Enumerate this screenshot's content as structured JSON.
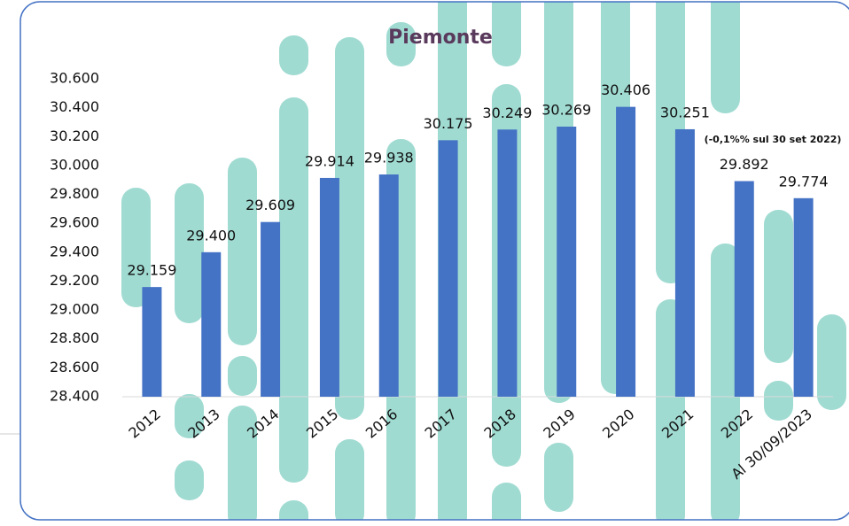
{
  "chart_data": {
    "type": "bar",
    "title": "Piemonte",
    "annotation": "(-0,1%% sul 30 set 2022)",
    "categories": [
      "2012",
      "2013",
      "2014",
      "2015",
      "2016",
      "2017",
      "2018",
      "2019",
      "2020",
      "2021",
      "2022",
      "Al 30/09/2023"
    ],
    "values": [
      29159,
      29400,
      29609,
      29914,
      29938,
      30175,
      30249,
      30269,
      30406,
      30251,
      29892,
      29774
    ],
    "value_labels": [
      "29.159",
      "29.400",
      "29.609",
      "29.914",
      "29.938",
      "30.175",
      "30.249",
      "30.269",
      "30.406",
      "30.251",
      "29.892",
      "29.774"
    ],
    "color": "#4472c4",
    "ylim": [
      28400,
      30600
    ],
    "yticks": [
      {
        "value": 28400,
        "label": "28.400"
      },
      {
        "value": 28600,
        "label": "28.600"
      },
      {
        "value": 28800,
        "label": "28.800"
      },
      {
        "value": 29000,
        "label": "29.000"
      },
      {
        "value": 29200,
        "label": "29.200"
      },
      {
        "value": 29400,
        "label": "29.400"
      },
      {
        "value": 29600,
        "label": "29.600"
      },
      {
        "value": 29800,
        "label": "29.800"
      },
      {
        "value": 30000,
        "label": "30.000"
      },
      {
        "value": 30200,
        "label": "30.200"
      },
      {
        "value": 30400,
        "label": "30.400"
      },
      {
        "value": 30600,
        "label": "30.600"
      }
    ],
    "grid": false
  }
}
